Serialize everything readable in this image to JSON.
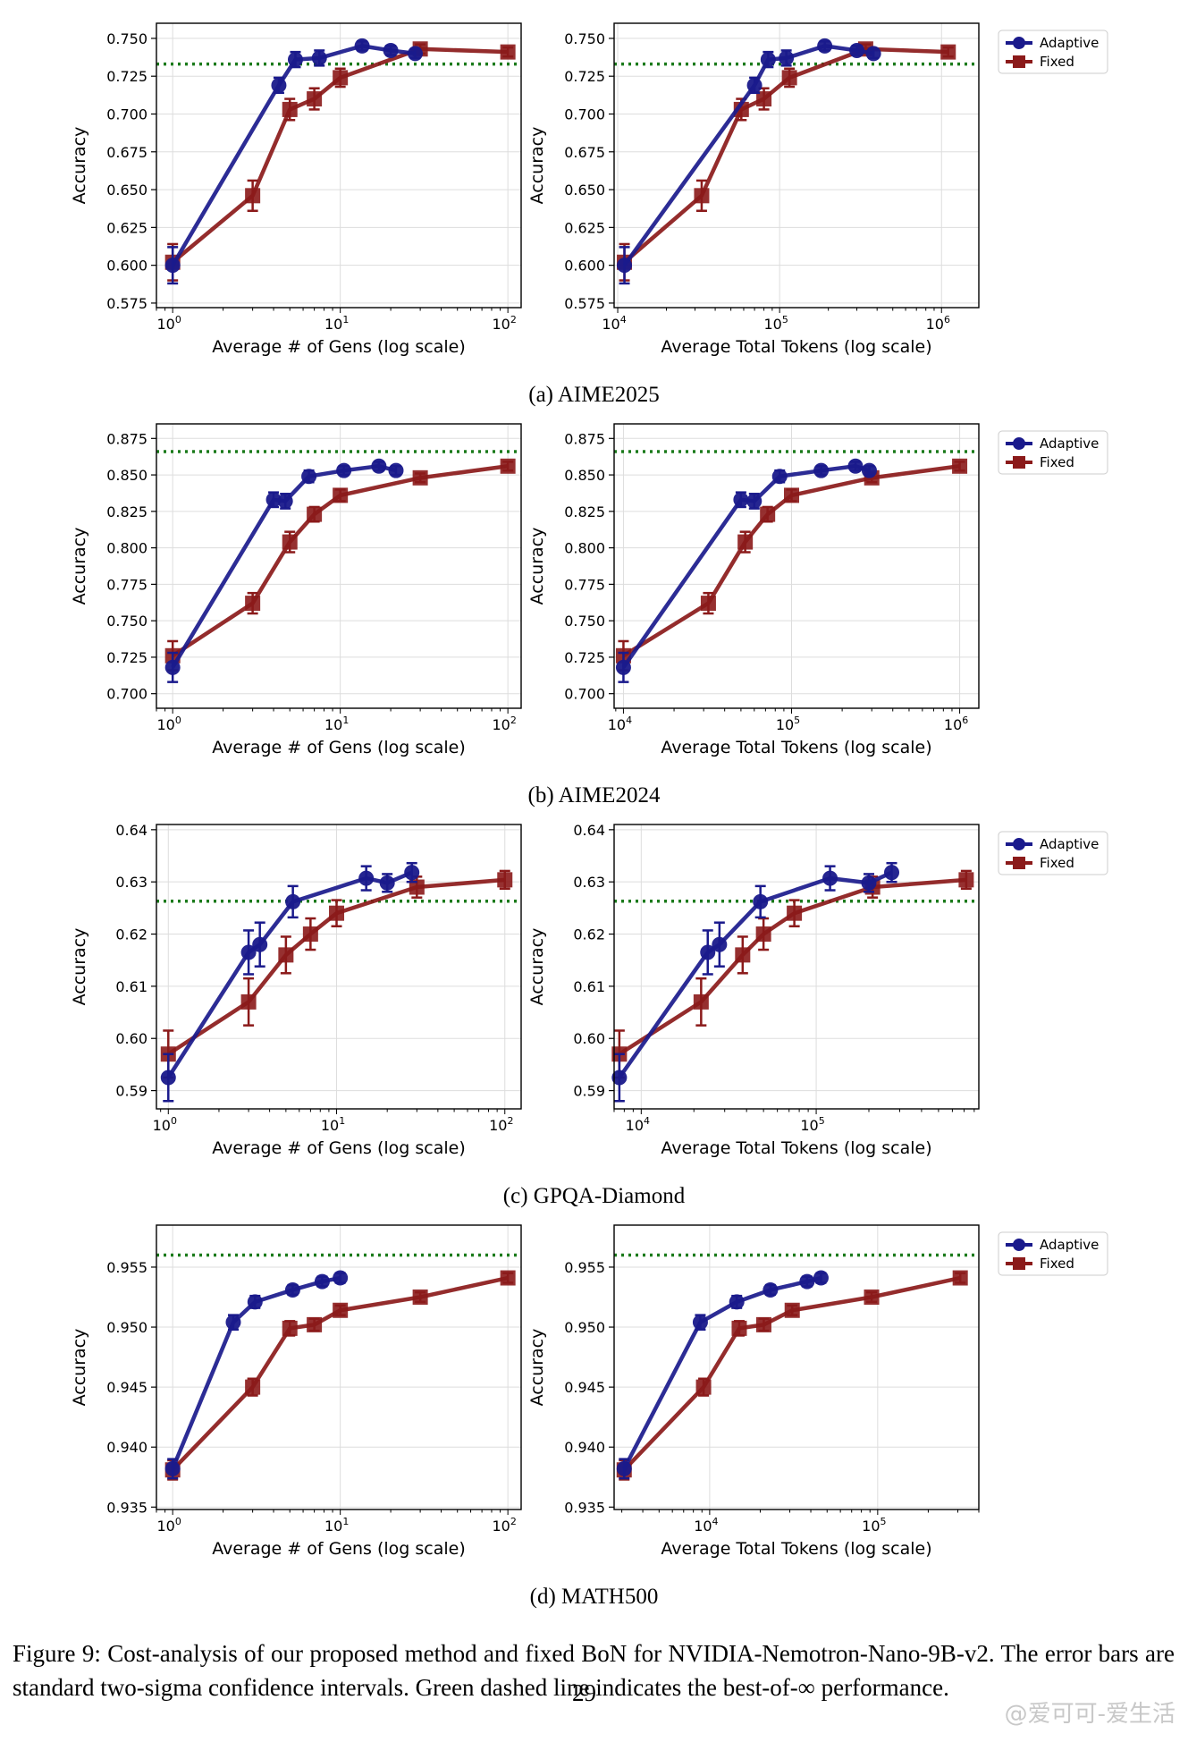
{
  "subcaptions": [
    "(a) AIME2025",
    "(b) AIME2024",
    "(c) GPQA-Diamond",
    "(d) MATH500"
  ],
  "figure_caption": "Figure 9: Cost-analysis of our proposed method and fixed BoN for NVIDIA-Nemotron-Nano-9B-v2. The error bars are standard two-sigma confidence intervals. Green dashed line indicates the best-of-∞ performance.",
  "page_number": "29",
  "watermark": "@爱可可-爱生活",
  "colors": {
    "adaptive": "#1a1a8c",
    "fixed": "#8b1a1a",
    "best": "#1a7a1a",
    "grid": "#dddddd"
  },
  "chart_data": [
    {
      "type": "line",
      "dataset": "AIME2025",
      "axis": "gens",
      "xlabel": "Average # of Gens (log scale)",
      "ylabel": "Accuracy",
      "xscale": "log",
      "xlim": [
        0.8,
        120
      ],
      "ylim": [
        0.572,
        0.76
      ],
      "yticks": [
        "0.575",
        "0.600",
        "0.625",
        "0.650",
        "0.675",
        "0.700",
        "0.725",
        "0.750"
      ],
      "xticks": [
        {
          "v": 1,
          "t": "10",
          "e": "0"
        },
        {
          "v": 10,
          "t": "10",
          "e": "1"
        },
        {
          "v": 100,
          "t": "10",
          "e": "2"
        }
      ],
      "best": 0.733,
      "legend": false,
      "series": [
        {
          "name": "Adaptive",
          "marker": "circle",
          "x": [
            1,
            4.3,
            5.4,
            7.5,
            13.5,
            20,
            28
          ],
          "y": [
            0.6,
            0.719,
            0.736,
            0.737,
            0.745,
            0.742,
            0.74
          ],
          "err": [
            0.012,
            0.005,
            0.005,
            0.005,
            0.003,
            0.003,
            0.003
          ]
        },
        {
          "name": "Fixed",
          "marker": "square",
          "x": [
            1,
            3,
            5,
            7,
            10,
            30,
            100
          ],
          "y": [
            0.602,
            0.646,
            0.703,
            0.71,
            0.724,
            0.743,
            0.741
          ],
          "err": [
            0.012,
            0.01,
            0.007,
            0.007,
            0.006,
            0.003,
            0.003
          ]
        }
      ]
    },
    {
      "type": "line",
      "dataset": "AIME2025",
      "axis": "tokens",
      "xlabel": "Average Total Tokens (log scale)",
      "ylabel": "Accuracy",
      "xscale": "log",
      "xlim": [
        9500,
        1700000
      ],
      "ylim": [
        0.572,
        0.76
      ],
      "yticks": [
        "0.575",
        "0.600",
        "0.625",
        "0.650",
        "0.675",
        "0.700",
        "0.725",
        "0.750"
      ],
      "xticks": [
        {
          "v": 10000,
          "t": "10",
          "e": "4"
        },
        {
          "v": 100000,
          "t": "10",
          "e": "5"
        },
        {
          "v": 1000000,
          "t": "10",
          "e": "6"
        }
      ],
      "best": 0.733,
      "legend": true,
      "series": [
        {
          "name": "Adaptive",
          "marker": "circle",
          "x": [
            11000,
            70000,
            85000,
            110000,
            190000,
            300000,
            380000
          ],
          "y": [
            0.6,
            0.719,
            0.736,
            0.737,
            0.745,
            0.742,
            0.74
          ],
          "err": [
            0.012,
            0.005,
            0.005,
            0.005,
            0.003,
            0.003,
            0.003
          ]
        },
        {
          "name": "Fixed",
          "marker": "square",
          "x": [
            11000,
            33000,
            58000,
            80000,
            115000,
            340000,
            1100000
          ],
          "y": [
            0.602,
            0.646,
            0.703,
            0.71,
            0.724,
            0.743,
            0.741
          ],
          "err": [
            0.012,
            0.01,
            0.007,
            0.007,
            0.006,
            0.003,
            0.003
          ]
        }
      ]
    },
    {
      "type": "line",
      "dataset": "AIME2024",
      "axis": "gens",
      "xlabel": "Average # of Gens (log scale)",
      "ylabel": "Accuracy",
      "xscale": "log",
      "xlim": [
        0.8,
        120
      ],
      "ylim": [
        0.69,
        0.885
      ],
      "yticks": [
        "0.700",
        "0.725",
        "0.750",
        "0.775",
        "0.800",
        "0.825",
        "0.850",
        "0.875"
      ],
      "xticks": [
        {
          "v": 1,
          "t": "10",
          "e": "0"
        },
        {
          "v": 10,
          "t": "10",
          "e": "1"
        },
        {
          "v": 100,
          "t": "10",
          "e": "2"
        }
      ],
      "best": 0.866,
      "legend": false,
      "series": [
        {
          "name": "Adaptive",
          "marker": "circle",
          "x": [
            1,
            4,
            4.7,
            6.5,
            10.5,
            17,
            21.5
          ],
          "y": [
            0.718,
            0.833,
            0.832,
            0.849,
            0.853,
            0.856,
            0.853
          ],
          "err": [
            0.01,
            0.005,
            0.005,
            0.004,
            0.003,
            0.003,
            0.003
          ]
        },
        {
          "name": "Fixed",
          "marker": "square",
          "x": [
            1,
            3,
            5,
            7,
            10,
            30,
            100
          ],
          "y": [
            0.726,
            0.762,
            0.804,
            0.823,
            0.836,
            0.848,
            0.856
          ],
          "err": [
            0.01,
            0.007,
            0.007,
            0.005,
            0.004,
            0.003,
            0.003
          ]
        }
      ]
    },
    {
      "type": "line",
      "dataset": "AIME2024",
      "axis": "tokens",
      "xlabel": "Average Total Tokens (log scale)",
      "ylabel": "Accuracy",
      "xscale": "log",
      "xlim": [
        8800,
        1300000
      ],
      "ylim": [
        0.69,
        0.885
      ],
      "yticks": [
        "0.700",
        "0.725",
        "0.750",
        "0.775",
        "0.800",
        "0.825",
        "0.850",
        "0.875"
      ],
      "xticks": [
        {
          "v": 10000,
          "t": "10",
          "e": "4"
        },
        {
          "v": 100000,
          "t": "10",
          "e": "5"
        },
        {
          "v": 1000000,
          "t": "10",
          "e": "6"
        }
      ],
      "best": 0.866,
      "legend": true,
      "series": [
        {
          "name": "Adaptive",
          "marker": "circle",
          "x": [
            10000,
            50000,
            60000,
            85000,
            150000,
            240000,
            290000
          ],
          "y": [
            0.718,
            0.833,
            0.832,
            0.849,
            0.853,
            0.856,
            0.853
          ],
          "err": [
            0.01,
            0.005,
            0.005,
            0.004,
            0.003,
            0.003,
            0.003
          ]
        },
        {
          "name": "Fixed",
          "marker": "square",
          "x": [
            10000,
            32000,
            53000,
            72000,
            100000,
            300000,
            1000000
          ],
          "y": [
            0.726,
            0.762,
            0.804,
            0.823,
            0.836,
            0.848,
            0.856
          ],
          "err": [
            0.01,
            0.007,
            0.007,
            0.005,
            0.004,
            0.003,
            0.003
          ]
        }
      ]
    },
    {
      "type": "line",
      "dataset": "GPQA-Diamond",
      "axis": "gens",
      "xlabel": "Average # of Gens (log scale)",
      "ylabel": "Accuracy",
      "xscale": "log",
      "xlim": [
        0.85,
        125
      ],
      "ylim": [
        0.5865,
        0.641
      ],
      "yticks": [
        "0.59",
        "0.60",
        "0.61",
        "0.62",
        "0.63",
        "0.64"
      ],
      "xticks": [
        {
          "v": 1,
          "t": "10",
          "e": "0"
        },
        {
          "v": 10,
          "t": "10",
          "e": "1"
        },
        {
          "v": 100,
          "t": "10",
          "e": "2"
        }
      ],
      "best": 0.6263,
      "legend": false,
      "series": [
        {
          "name": "Adaptive",
          "marker": "circle",
          "x": [
            1,
            3,
            3.5,
            5.5,
            15,
            20,
            28
          ],
          "y": [
            0.5925,
            0.6165,
            0.618,
            0.6262,
            0.6307,
            0.6298,
            0.6318
          ],
          "err": [
            0.0045,
            0.0042,
            0.0042,
            0.003,
            0.0023,
            0.0017,
            0.0018
          ]
        },
        {
          "name": "Fixed",
          "marker": "square",
          "x": [
            1,
            3,
            5,
            7,
            10,
            30,
            100
          ],
          "y": [
            0.597,
            0.607,
            0.616,
            0.62,
            0.624,
            0.629,
            0.6304
          ],
          "err": [
            0.0045,
            0.0045,
            0.0035,
            0.003,
            0.0025,
            0.002,
            0.0017
          ]
        }
      ]
    },
    {
      "type": "line",
      "dataset": "GPQA-Diamond",
      "axis": "tokens",
      "xlabel": "Average Total Tokens (log scale)",
      "ylabel": "Accuracy",
      "xscale": "log",
      "xlim": [
        7000,
        850000
      ],
      "ylim": [
        0.5865,
        0.641
      ],
      "yticks": [
        "0.59",
        "0.60",
        "0.61",
        "0.62",
        "0.63",
        "0.64"
      ],
      "xticks": [
        {
          "v": 10000,
          "t": "10",
          "e": "4"
        },
        {
          "v": 100000,
          "t": "10",
          "e": "5"
        }
      ],
      "best": 0.6263,
      "legend": true,
      "series": [
        {
          "name": "Adaptive",
          "marker": "circle",
          "x": [
            7500,
            24000,
            28000,
            48000,
            120000,
            200000,
            270000
          ],
          "y": [
            0.5925,
            0.6165,
            0.618,
            0.6262,
            0.6307,
            0.6298,
            0.6318
          ],
          "err": [
            0.0045,
            0.0042,
            0.0042,
            0.003,
            0.0023,
            0.0017,
            0.0018
          ]
        },
        {
          "name": "Fixed",
          "marker": "square",
          "x": [
            7500,
            22000,
            38000,
            50000,
            75000,
            210000,
            720000
          ],
          "y": [
            0.597,
            0.607,
            0.616,
            0.62,
            0.624,
            0.629,
            0.6304
          ],
          "err": [
            0.0045,
            0.0045,
            0.0035,
            0.003,
            0.0025,
            0.002,
            0.0017
          ]
        }
      ]
    },
    {
      "type": "line",
      "dataset": "MATH500",
      "axis": "gens",
      "xlabel": "Average # of Gens (log scale)",
      "ylabel": "Accuracy",
      "xscale": "log",
      "xlim": [
        0.8,
        120
      ],
      "ylim": [
        0.9348,
        0.9585
      ],
      "yticks": [
        "0.935",
        "0.940",
        "0.945",
        "0.950",
        "0.955"
      ],
      "xticks": [
        {
          "v": 1,
          "t": "10",
          "e": "0"
        },
        {
          "v": 10,
          "t": "10",
          "e": "1"
        },
        {
          "v": 100,
          "t": "10",
          "e": "2"
        }
      ],
      "best": 0.956,
      "legend": false,
      "series": [
        {
          "name": "Adaptive",
          "marker": "circle",
          "x": [
            1,
            2.3,
            3.1,
            5.2,
            7.8,
            10
          ],
          "y": [
            0.9382,
            0.9504,
            0.9521,
            0.9531,
            0.9538,
            0.9541
          ],
          "err": [
            0.0008,
            0.0006,
            0.0005,
            0.0004,
            0.0004,
            0.0004
          ]
        },
        {
          "name": "Fixed",
          "marker": "square",
          "x": [
            1,
            3,
            5,
            7,
            10,
            30,
            100
          ],
          "y": [
            0.9381,
            0.945,
            0.9499,
            0.9502,
            0.9514,
            0.9525,
            0.9541
          ],
          "err": [
            0.0008,
            0.0007,
            0.0006,
            0.0005,
            0.0004,
            0.0004,
            0.0004
          ]
        }
      ]
    },
    {
      "type": "line",
      "dataset": "MATH500",
      "axis": "tokens",
      "xlabel": "Average Total Tokens (log scale)",
      "ylabel": "Accuracy",
      "xscale": "log",
      "xlim": [
        2700,
        400000
      ],
      "ylim": [
        0.9348,
        0.9585
      ],
      "yticks": [
        "0.935",
        "0.940",
        "0.945",
        "0.950",
        "0.955"
      ],
      "xticks": [
        {
          "v": 10000,
          "t": "10",
          "e": "4"
        },
        {
          "v": 100000,
          "t": "10",
          "e": "5"
        }
      ],
      "best": 0.956,
      "legend": true,
      "series": [
        {
          "name": "Adaptive",
          "marker": "circle",
          "x": [
            3100,
            8800,
            14500,
            23000,
            38000,
            46000
          ],
          "y": [
            0.9382,
            0.9504,
            0.9521,
            0.9531,
            0.9538,
            0.9541
          ],
          "err": [
            0.0008,
            0.0006,
            0.0005,
            0.0004,
            0.0004,
            0.0004
          ]
        },
        {
          "name": "Fixed",
          "marker": "square",
          "x": [
            3100,
            9200,
            15000,
            21000,
            31000,
            92000,
            310000
          ],
          "y": [
            0.9381,
            0.945,
            0.9499,
            0.9502,
            0.9514,
            0.9525,
            0.9541
          ],
          "err": [
            0.0008,
            0.0007,
            0.0006,
            0.0005,
            0.0004,
            0.0004,
            0.0004
          ]
        }
      ]
    }
  ]
}
